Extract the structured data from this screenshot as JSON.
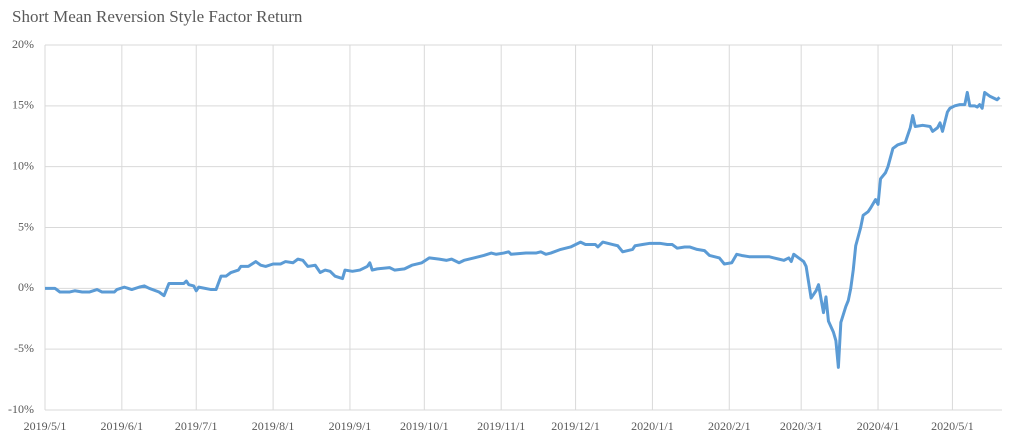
{
  "chart_data": {
    "type": "line",
    "title": "Short Mean Reversion Style Factor Return",
    "x": [
      "2019/5/1",
      "2019/5/5",
      "2019/5/7",
      "2019/5/11",
      "2019/5/13",
      "2019/5/16",
      "2019/5/19",
      "2019/5/22",
      "2019/5/24",
      "2019/5/29",
      "2019/5/30",
      "2019/6/2",
      "2019/6/5",
      "2019/6/8",
      "2019/6/10",
      "2019/6/12",
      "2019/6/16",
      "2019/6/18",
      "2019/6/20",
      "2019/6/24",
      "2019/6/26",
      "2019/6/27",
      "2019/6/28",
      "2019/6/30",
      "2019/7/1",
      "2019/7/2",
      "2019/7/7",
      "2019/7/9",
      "2019/7/11",
      "2019/7/13",
      "2019/7/15",
      "2019/7/18",
      "2019/7/19",
      "2019/7/22",
      "2019/7/25",
      "2019/7/27",
      "2019/7/29",
      "2019/8/1",
      "2019/8/4",
      "2019/8/6",
      "2019/8/9",
      "2019/8/11",
      "2019/8/13",
      "2019/8/15",
      "2019/8/18",
      "2019/8/20",
      "2019/8/22",
      "2019/8/24",
      "2019/8/26",
      "2019/8/29",
      "2019/8/30",
      "2019/9/2",
      "2019/9/5",
      "2019/9/8",
      "2019/9/9",
      "2019/9/10",
      "2019/9/12",
      "2019/9/17",
      "2019/9/19",
      "2019/9/23",
      "2019/9/26",
      "2019/9/30",
      "2019/10/3",
      "2019/10/7",
      "2019/10/10",
      "2019/10/12",
      "2019/10/15",
      "2019/10/17",
      "2019/10/21",
      "2019/10/25",
      "2019/10/28",
      "2019/10/30",
      "2019/11/2",
      "2019/11/4",
      "2019/11/5",
      "2019/11/11",
      "2019/11/15",
      "2019/11/17",
      "2019/11/19",
      "2019/11/21",
      "2019/11/25",
      "2019/11/29",
      "2019/12/3",
      "2019/12/5",
      "2019/12/9",
      "2019/12/10",
      "2019/12/12",
      "2019/12/16",
      "2019/12/18",
      "2019/12/20",
      "2019/12/24",
      "2019/12/25",
      "2019/12/28",
      "2019/12/31",
      "2020/1/4",
      "2020/1/7",
      "2020/1/9",
      "2020/1/11",
      "2020/1/14",
      "2020/1/16",
      "2020/1/19",
      "2020/1/22",
      "2020/1/24",
      "2020/1/28",
      "2020/1/30",
      "2020/2/2",
      "2020/2/4",
      "2020/2/6",
      "2020/2/9",
      "2020/2/13",
      "2020/2/17",
      "2020/2/19",
      "2020/2/21",
      "2020/2/23",
      "2020/2/25",
      "2020/2/26",
      "2020/2/27",
      "2020/2/29",
      "2020/3/2",
      "2020/3/3",
      "2020/3/4",
      "2020/3/5",
      "2020/3/7",
      "2020/3/8",
      "2020/3/10",
      "2020/3/11",
      "2020/3/12",
      "2020/3/14",
      "2020/3/15",
      "2020/3/16",
      "2020/3/17",
      "2020/3/19",
      "2020/3/20",
      "2020/3/21",
      "2020/3/22",
      "2020/3/23",
      "2020/3/25",
      "2020/3/26",
      "2020/3/28",
      "2020/3/29",
      "2020/3/31",
      "2020/4/1",
      "2020/4/2",
      "2020/4/4",
      "2020/4/5",
      "2020/4/7",
      "2020/4/9",
      "2020/4/12",
      "2020/4/14",
      "2020/4/15",
      "2020/4/16",
      "2020/4/19",
      "2020/4/22",
      "2020/4/23",
      "2020/4/25",
      "2020/4/26",
      "2020/4/27",
      "2020/4/29",
      "2020/4/30",
      "2020/5/2",
      "2020/5/4",
      "2020/5/6",
      "2020/5/7",
      "2020/5/8",
      "2020/5/10",
      "2020/5/11",
      "2020/5/12",
      "2020/5/13",
      "2020/5/14",
      "2020/5/16",
      "2020/5/18",
      "2020/5/19",
      "2020/5/20"
    ],
    "series": [
      {
        "color": "#5b9bd5",
        "values": [
          0,
          0,
          -0.3,
          -0.3,
          -0.2,
          -0.3,
          -0.3,
          -0.1,
          -0.3,
          -0.3,
          -0.1,
          0.1,
          -0.1,
          0.1,
          0.2,
          0,
          -0.3,
          -0.6,
          0.4,
          0.4,
          0.4,
          0.6,
          0.3,
          0.2,
          -0.2,
          0.1,
          -0.1,
          -0.1,
          1.0,
          1.0,
          1.3,
          1.5,
          1.8,
          1.8,
          2.2,
          1.9,
          1.8,
          2.0,
          2.0,
          2.2,
          2.1,
          2.4,
          2.3,
          1.8,
          1.9,
          1.3,
          1.5,
          1.4,
          1.0,
          0.8,
          1.5,
          1.4,
          1.5,
          1.8,
          2.1,
          1.5,
          1.6,
          1.7,
          1.5,
          1.6,
          1.9,
          2.1,
          2.5,
          2.4,
          2.3,
          2.4,
          2.1,
          2.3,
          2.5,
          2.7,
          2.9,
          2.8,
          2.9,
          3.0,
          2.8,
          2.9,
          2.9,
          3.0,
          2.8,
          2.9,
          3.2,
          3.4,
          3.8,
          3.6,
          3.6,
          3.4,
          3.8,
          3.6,
          3.5,
          3.0,
          3.2,
          3.5,
          3.6,
          3.7,
          3.7,
          3.6,
          3.6,
          3.3,
          3.4,
          3.4,
          3.2,
          3.1,
          2.7,
          2.5,
          2.0,
          2.1,
          2.8,
          2.7,
          2.6,
          2.6,
          2.6,
          2.5,
          2.4,
          2.3,
          2.5,
          2.2,
          2.8,
          2.5,
          2.2,
          1.8,
          0.5,
          -0.8,
          -0.2,
          0.3,
          -2.0,
          -0.7,
          -2.7,
          -3.6,
          -4.3,
          -6.5,
          -2.8,
          -1.5,
          -1.0,
          0.0,
          1.5,
          3.5,
          5.0,
          6.0,
          6.3,
          6.6,
          7.3,
          6.9,
          9.0,
          9.5,
          10.0,
          11.5,
          11.8,
          12.0,
          13.2,
          14.2,
          13.3,
          13.4,
          13.3,
          12.9,
          13.2,
          13.6,
          12.9,
          14.5,
          14.8,
          15.0,
          15.1,
          15.1,
          16.1,
          15.0,
          15.0,
          14.9,
          15.1,
          14.8,
          16.1,
          15.8,
          15.6,
          15.5,
          15.7
        ]
      }
    ],
    "xlim": [
      "2019/5/1",
      "2020/5/21"
    ],
    "xticks": [
      "2019/5/1",
      "2019/6/1",
      "2019/7/1",
      "2019/8/1",
      "2019/9/1",
      "2019/10/1",
      "2019/11/1",
      "2019/12/1",
      "2020/1/1",
      "2020/2/1",
      "2020/3/1",
      "2020/4/1",
      "2020/5/1"
    ],
    "ylim": [
      -10,
      20
    ],
    "yticks": [
      {
        "value": -10,
        "label": "-10%"
      },
      {
        "value": -5,
        "label": "-5%"
      },
      {
        "value": 0,
        "label": "0%"
      },
      {
        "value": 5,
        "label": "5%"
      },
      {
        "value": 10,
        "label": "10%"
      },
      {
        "value": 15,
        "label": "15%"
      },
      {
        "value": 20,
        "label": "20%"
      }
    ],
    "grid": true
  }
}
